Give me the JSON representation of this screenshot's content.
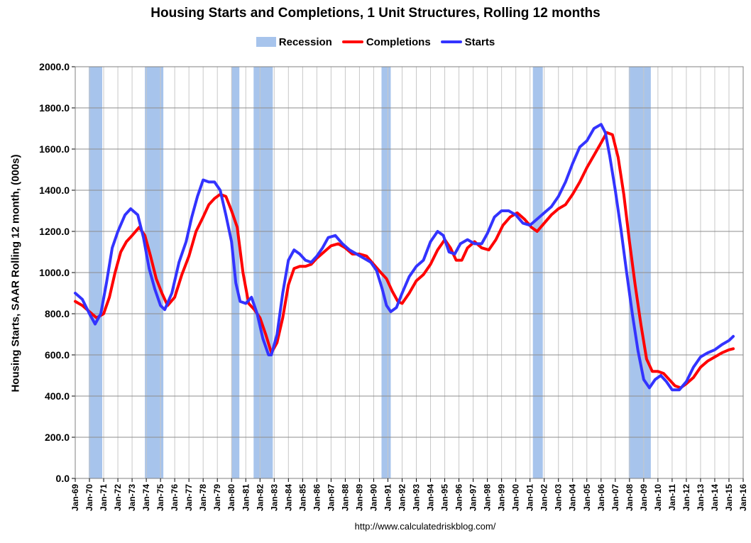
{
  "chart_data": {
    "type": "line",
    "title": "Housing Starts and Completions, 1 Unit Structures, Rolling 12 months",
    "ylabel": "Housing Starts, SAAR Rolling 12 month, (000s)",
    "xlabel": "",
    "ylim": [
      0,
      2000
    ],
    "yticks": [
      "0.0",
      "200.0",
      "400.0",
      "600.0",
      "800.0",
      "1000.0",
      "1200.0",
      "1400.0",
      "1600.0",
      "1800.0",
      "2000.0"
    ],
    "xticks": [
      "Jan-69",
      "Jan-70",
      "Jan-71",
      "Jan-72",
      "Jan-73",
      "Jan-74",
      "Jan-75",
      "Jan-76",
      "Jan-77",
      "Jan-78",
      "Jan-79",
      "Jan-80",
      "Jan-81",
      "Jan-82",
      "Jan-83",
      "Jan-84",
      "Jan-85",
      "Jan-86",
      "Jan-87",
      "Jan-88",
      "Jan-89",
      "Jan-90",
      "Jan-91",
      "Jan-92",
      "Jan-93",
      "Jan-94",
      "Jan-95",
      "Jan-96",
      "Jan-97",
      "Jan-98",
      "Jan-99",
      "Jan-00",
      "Jan-01",
      "Jan-02",
      "Jan-03",
      "Jan-04",
      "Jan-05",
      "Jan-06",
      "Jan-07",
      "Jan-08",
      "Jan-09",
      "Jan-10",
      "Jan-11",
      "Jan-12",
      "Jan-13",
      "Jan-14",
      "Jan-15",
      "Jan-16"
    ],
    "x_range": [
      1969.0,
      2016.0
    ],
    "legend": [
      {
        "name": "Recession",
        "kind": "box",
        "color": "#a7c4ec"
      },
      {
        "name": "Completions",
        "kind": "line",
        "color": "#ff0000"
      },
      {
        "name": "Starts",
        "kind": "line",
        "color": "#3333ff"
      }
    ],
    "recessions": [
      [
        1969.95,
        1970.9
      ],
      [
        1973.9,
        1975.2
      ],
      [
        1980.0,
        1980.55
      ],
      [
        1981.55,
        1982.9
      ],
      [
        1990.55,
        1991.2
      ],
      [
        2001.2,
        2001.9
      ],
      [
        2007.95,
        2009.5
      ]
    ],
    "series": [
      {
        "name": "Starts",
        "color": "#3333ff",
        "points": [
          [
            1969.0,
            900
          ],
          [
            1969.5,
            870
          ],
          [
            1970.0,
            800
          ],
          [
            1970.4,
            750
          ],
          [
            1970.8,
            800
          ],
          [
            1971.2,
            950
          ],
          [
            1971.6,
            1120
          ],
          [
            1972.0,
            1200
          ],
          [
            1972.5,
            1280
          ],
          [
            1972.9,
            1310
          ],
          [
            1973.4,
            1280
          ],
          [
            1973.8,
            1170
          ],
          [
            1974.2,
            1020
          ],
          [
            1974.6,
            920
          ],
          [
            1975.0,
            840
          ],
          [
            1975.3,
            820
          ],
          [
            1975.8,
            900
          ],
          [
            1976.3,
            1050
          ],
          [
            1976.8,
            1150
          ],
          [
            1977.2,
            1270
          ],
          [
            1977.6,
            1370
          ],
          [
            1978.0,
            1450
          ],
          [
            1978.4,
            1440
          ],
          [
            1978.8,
            1440
          ],
          [
            1979.2,
            1400
          ],
          [
            1979.6,
            1280
          ],
          [
            1980.0,
            1150
          ],
          [
            1980.3,
            950
          ],
          [
            1980.6,
            860
          ],
          [
            1981.0,
            850
          ],
          [
            1981.4,
            880
          ],
          [
            1981.8,
            800
          ],
          [
            1982.2,
            680
          ],
          [
            1982.6,
            600
          ],
          [
            1982.8,
            600
          ],
          [
            1983.2,
            700
          ],
          [
            1983.6,
            900
          ],
          [
            1984.0,
            1060
          ],
          [
            1984.4,
            1110
          ],
          [
            1984.8,
            1090
          ],
          [
            1985.2,
            1060
          ],
          [
            1985.6,
            1050
          ],
          [
            1986.0,
            1080
          ],
          [
            1986.4,
            1120
          ],
          [
            1986.8,
            1170
          ],
          [
            1987.3,
            1180
          ],
          [
            1987.8,
            1140
          ],
          [
            1988.3,
            1110
          ],
          [
            1988.8,
            1090
          ],
          [
            1989.3,
            1070
          ],
          [
            1989.8,
            1050
          ],
          [
            1990.2,
            1010
          ],
          [
            1990.6,
            920
          ],
          [
            1990.9,
            840
          ],
          [
            1991.2,
            810
          ],
          [
            1991.6,
            830
          ],
          [
            1992.0,
            900
          ],
          [
            1992.5,
            980
          ],
          [
            1993.0,
            1030
          ],
          [
            1993.5,
            1060
          ],
          [
            1994.0,
            1150
          ],
          [
            1994.5,
            1200
          ],
          [
            1994.9,
            1180
          ],
          [
            1995.3,
            1100
          ],
          [
            1995.7,
            1090
          ],
          [
            1996.1,
            1140
          ],
          [
            1996.6,
            1160
          ],
          [
            1997.1,
            1140
          ],
          [
            1997.6,
            1140
          ],
          [
            1998.0,
            1190
          ],
          [
            1998.5,
            1270
          ],
          [
            1999.0,
            1300
          ],
          [
            1999.5,
            1300
          ],
          [
            2000.0,
            1280
          ],
          [
            2000.5,
            1240
          ],
          [
            2001.0,
            1230
          ],
          [
            2001.5,
            1260
          ],
          [
            2002.0,
            1290
          ],
          [
            2002.5,
            1320
          ],
          [
            2003.0,
            1370
          ],
          [
            2003.5,
            1440
          ],
          [
            2004.0,
            1530
          ],
          [
            2004.5,
            1610
          ],
          [
            2005.0,
            1640
          ],
          [
            2005.5,
            1700
          ],
          [
            2006.0,
            1720
          ],
          [
            2006.3,
            1680
          ],
          [
            2006.6,
            1570
          ],
          [
            2007.0,
            1400
          ],
          [
            2007.4,
            1210
          ],
          [
            2007.8,
            1000
          ],
          [
            2008.2,
            800
          ],
          [
            2008.6,
            620
          ],
          [
            2009.0,
            480
          ],
          [
            2009.4,
            440
          ],
          [
            2009.8,
            480
          ],
          [
            2010.2,
            500
          ],
          [
            2010.6,
            470
          ],
          [
            2011.0,
            430
          ],
          [
            2011.5,
            430
          ],
          [
            2012.0,
            470
          ],
          [
            2012.5,
            540
          ],
          [
            2013.0,
            590
          ],
          [
            2013.5,
            610
          ],
          [
            2014.0,
            625
          ],
          [
            2014.5,
            650
          ],
          [
            2015.0,
            670
          ],
          [
            2015.3,
            690
          ]
        ]
      },
      {
        "name": "Completions",
        "color": "#ff0000",
        "points": [
          [
            1969.0,
            860
          ],
          [
            1969.5,
            840
          ],
          [
            1970.0,
            810
          ],
          [
            1970.5,
            780
          ],
          [
            1971.0,
            800
          ],
          [
            1971.4,
            880
          ],
          [
            1971.8,
            1000
          ],
          [
            1972.2,
            1100
          ],
          [
            1972.6,
            1150
          ],
          [
            1973.0,
            1180
          ],
          [
            1973.5,
            1220
          ],
          [
            1973.9,
            1180
          ],
          [
            1974.3,
            1080
          ],
          [
            1974.7,
            970
          ],
          [
            1975.1,
            900
          ],
          [
            1975.5,
            840
          ],
          [
            1976.0,
            880
          ],
          [
            1976.5,
            990
          ],
          [
            1977.0,
            1080
          ],
          [
            1977.5,
            1200
          ],
          [
            1978.0,
            1270
          ],
          [
            1978.4,
            1330
          ],
          [
            1978.8,
            1360
          ],
          [
            1979.2,
            1380
          ],
          [
            1979.6,
            1370
          ],
          [
            1980.0,
            1300
          ],
          [
            1980.4,
            1220
          ],
          [
            1980.8,
            1000
          ],
          [
            1981.2,
            850
          ],
          [
            1981.6,
            820
          ],
          [
            1982.0,
            780
          ],
          [
            1982.4,
            700
          ],
          [
            1982.8,
            610
          ],
          [
            1983.2,
            660
          ],
          [
            1983.6,
            780
          ],
          [
            1984.0,
            940
          ],
          [
            1984.4,
            1020
          ],
          [
            1984.8,
            1030
          ],
          [
            1985.2,
            1030
          ],
          [
            1985.6,
            1040
          ],
          [
            1986.0,
            1070
          ],
          [
            1986.5,
            1100
          ],
          [
            1987.0,
            1130
          ],
          [
            1987.5,
            1140
          ],
          [
            1988.0,
            1120
          ],
          [
            1988.5,
            1090
          ],
          [
            1989.0,
            1090
          ],
          [
            1989.5,
            1080
          ],
          [
            1990.0,
            1040
          ],
          [
            1990.5,
            1000
          ],
          [
            1990.9,
            970
          ],
          [
            1991.3,
            910
          ],
          [
            1991.7,
            860
          ],
          [
            1992.0,
            850
          ],
          [
            1992.5,
            900
          ],
          [
            1993.0,
            960
          ],
          [
            1993.5,
            990
          ],
          [
            1994.0,
            1040
          ],
          [
            1994.5,
            1110
          ],
          [
            1995.0,
            1160
          ],
          [
            1995.4,
            1120
          ],
          [
            1995.8,
            1060
          ],
          [
            1996.2,
            1060
          ],
          [
            1996.6,
            1120
          ],
          [
            1997.1,
            1150
          ],
          [
            1997.6,
            1120
          ],
          [
            1998.1,
            1110
          ],
          [
            1998.6,
            1160
          ],
          [
            1999.1,
            1230
          ],
          [
            1999.6,
            1270
          ],
          [
            2000.1,
            1290
          ],
          [
            2000.6,
            1260
          ],
          [
            2001.1,
            1220
          ],
          [
            2001.5,
            1200
          ],
          [
            2002.0,
            1240
          ],
          [
            2002.5,
            1280
          ],
          [
            2003.0,
            1310
          ],
          [
            2003.5,
            1330
          ],
          [
            2004.0,
            1380
          ],
          [
            2004.5,
            1440
          ],
          [
            2005.0,
            1510
          ],
          [
            2005.5,
            1570
          ],
          [
            2006.0,
            1630
          ],
          [
            2006.4,
            1680
          ],
          [
            2006.8,
            1670
          ],
          [
            2007.2,
            1560
          ],
          [
            2007.6,
            1380
          ],
          [
            2008.0,
            1150
          ],
          [
            2008.4,
            940
          ],
          [
            2008.8,
            750
          ],
          [
            2009.2,
            580
          ],
          [
            2009.6,
            520
          ],
          [
            2010.0,
            520
          ],
          [
            2010.4,
            510
          ],
          [
            2010.8,
            480
          ],
          [
            2011.2,
            450
          ],
          [
            2011.6,
            440
          ],
          [
            2012.0,
            460
          ],
          [
            2012.5,
            490
          ],
          [
            2013.0,
            540
          ],
          [
            2013.5,
            570
          ],
          [
            2014.0,
            590
          ],
          [
            2014.5,
            610
          ],
          [
            2015.0,
            625
          ],
          [
            2015.3,
            630
          ]
        ]
      }
    ]
  },
  "source_url": "http://www.calculatedriskblog.com/"
}
